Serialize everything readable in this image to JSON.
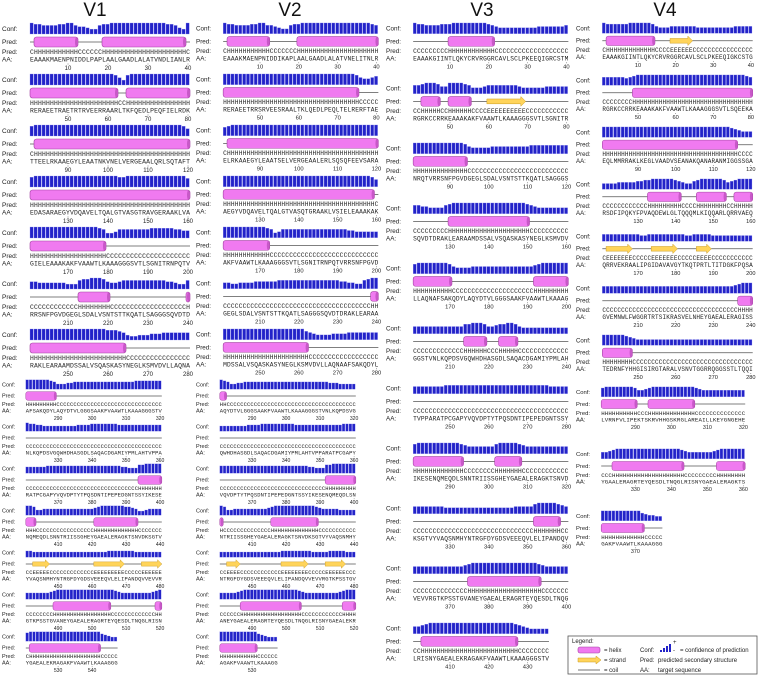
{
  "labels": {
    "conf": "Conf:",
    "pred": "Pred:",
    "aa": "AA:"
  },
  "columns": [
    {
      "title": "V1",
      "blocks": [
        {
          "conf": "9887777889976654478899999999999999887549",
          "pred": "CHHHHHHHHHHHCCCCCCHHHHHHHHHHHHHHHHHHHHHC",
          "aa": "EAAAKMAENPNIDDLPAPLAALGAADLALATVNDLIANLR",
          "ticks": [
            10,
            20,
            30,
            40
          ]
        },
        {
          "conf": "9999999999999999999998648999999999999999",
          "pred": "HHHHHHHHHHHHHHHHHHHHHHCCHHHHHHHHHHHHHHHH",
          "aa": "RERAEETRAETRTRVEERRAARLTKFQEDLPEQFIELRDK",
          "ticks": [
            50,
            60,
            70,
            80
          ]
        },
        {
          "conf": "8999999999999999999999999999999999999986",
          "pred": "CHHHHHHHHHHHHHHHHHHHHHHHHHHHHHHHHHHHHHHH",
          "aa": "TTEELRKAAEGYLEAATNKVNELVERGEAALQRLSQTAFT",
          "ticks": [
            90,
            100,
            110,
            120
          ]
        },
        {
          "conf": "8999999999999999999999889999999999999997",
          "pred": "HHHHHHHHHHHHHHHHHHHHHHHHHHHHHHHHHHHHHHHH",
          "aa": "EDASARAEGYVDQAVELTQALGTVASGTRAVGERAAKLVA",
          "ticks": [
            130,
            140,
            150,
            160
          ]
        },
        {
          "conf": "9999999999999999987445777777778888887766",
          "pred": "HHHHHHHHHHHHHHHHHHHCCCCCCCCCCCCCCCCCCCCC",
          "aa": "GIELEAAAKAKFVAAWTLKAAAGGGSVTLSGNITRNPQTV",
          "ticks": [
            170,
            180,
            190,
            200
          ]
        },
        {
          "conf": "6655555554447889998655677777777777665447",
          "pred": "CCCCCCCCCCCCHHHHHHHHCCCCCCCCCCCCCCCCCCCH",
          "aa": "RRSNFPGVDGEGLSDALVSNTSTTKQATLSAGGGSQVDTD",
          "ticks": [
            210,
            220,
            230,
            240
          ]
        },
        {
          "conf": "9999999999999999999888764334445556666666",
          "pred": "HHHHHHHHHHHHHHHHHHHHHHHHCCCCCCCCCCCCCCCC",
          "aa": "RAKLEARAAMDSSALVSQASKASYNEGLKSMVDVLLAQNA",
          "ticks": [
            250,
            260,
            270,
            280
          ]
        },
        {
          "conf": "9999999875556677777777777777777788888888",
          "pred": "HHHHHHHHHCCCCCCCCCCCCCCCCCCCCCCCCCCCCCCC",
          "aa": "AFSAKQDYLAQYDTVLGGGSAAKFVAAWTLKAAAGGGSTV",
          "ticks": [
            290,
            300,
            310,
            320
          ]
        },
        {
          "conf": "8776655555555556666777777776666666666666",
          "pred": "CCCCCCCCCCCCCCCCCCCCCCCCCCCCCCCCCCCCCCCC",
          "aa": "NLKQPDSVGQWHDHASGDLSAQACDGAMIYPMLAHTVPPA",
          "ticks": [
            330,
            340,
            350,
            360
          ]
        },
        {
          "conf": "6666667777777777777777777777665558899999",
          "pred": "CCCCCCCCCCCCCCCCCCCCCCCCCCCCCCCCCHHHHHHH",
          "aa": "RATPCGAPYVQVDPTYTPQSDNTIPEPEDGNTSSYIKESE",
          "ticks": [
            370,
            380,
            390,
            400
          ]
        },
        {
          "conf": "9985566666666666666678999999988764456666",
          "pred": "HHHCCCCCCCCCCCCCCCCCHHHHHHHHHHHHHCCCCCCC",
          "aa": "NQMEQDLSNNTRIISSGHEYGAEALERAGKTSNVDKSGTV",
          "ticks": [
            410,
            420,
            430,
            440
          ]
        },
        {
          "conf": "6655555555555555555555556666666655555555",
          "pred": "CCEEEEECCCCCCCCCCCCCEEEEEEEEECCCCCEEEEEE",
          "aa": "YVAQSNMHYNTRGFDYGDSVEEEQVLELIPANDQVVEVVR",
          "ticks": [
            450,
            460,
            470,
            480
          ]
        },
        {
          "conf": "6666666789999999999999999987666666666789",
          "pred": "CCCCCCCCHHHHHHHHHHHHHHHHHCCCCCCCCCCCCCHH",
          "aa": "GTKPSSTGVANEYGAEALERAGRTEYQESDLTNQGLRISN",
          "ticks": [
            490,
            500,
            510,
            520
          ]
        },
        {
          "conf": "899999999999999999999976544",
          "pred": "CHHHHHHHHHHHHHHHHHHHHHCCCCC",
          "aa": "YGAEALEKRAGAKFVAAWTLKAAAGGG",
          "ticks": [
            530,
            540
          ]
        }
      ]
    },
    {
      "title": "V2",
      "blocks": [
        {
          "conf": "9887777889977654478899999999999999999987",
          "pred": "CHHHHHHHHHHHCCCCCCCHHHHHHHHHHHHHHHHHHHHH",
          "aa": "EAAAKMAENPNIDDIKAPLAALGAADLALATVNELITNLR",
          "ticks": [
            10,
            20,
            30,
            40
          ]
        },
        {
          "conf": "9999999999999999999999999999999999865567",
          "pred": "HHHHHHHHHHHHHHHHHHHHHHHHHHHHHHHHHHHCCCCC",
          "aa": "RERAEETRRSRVEESRAALTKLQEDLPEQLTELRERFTAE",
          "ticks": [
            50,
            60,
            70,
            80
          ]
        },
        {
          "conf": "7899999999999999999999999999999999999999",
          "pred": "CHHHHHHHHHHHHHHHHHHHHHHHHHHHHHHHHHHHHHHH",
          "aa": "ELRKAAEGYLEAATSELVERGEAALERLSQSQFEEVSARA",
          "ticks": [
            90,
            100,
            110,
            120
          ]
        },
        {
          "conf": "9999999999999999999999999999999999999986",
          "pred": "HHHHHHHHHHHHHHHHHHHHHHHHHHHHHHHHHHHHHHHC",
          "aa": "AEGYVDQAVELTQALGTVASQTGRAAKLVSIELEAAAKAK",
          "ticks": [
            130,
            140,
            150,
            160
          ]
        },
        {
          "conf": "9999999999987457777777777777777766555555",
          "pred": "HHHHHHHHHHHHCCCCCCCCCCCCCCCCCCCCCCCCCCCC",
          "aa": "AKFVAAWTLKAAAGGGSVTLSGNITRNPQTVRRSNFPGVD",
          "ticks": [
            170,
            180,
            190,
            200
          ]
        },
        {
          "conf": "5544555566666677777777777777776655447899",
          "pred": "CCCCCCCCCCCCCCCCCCCCCCCCCCCCCCCCCCCCCCHH",
          "aa": "GEGLSDALVSNTSTTKQATLSAGGGSQVDTDRAKLEARAA",
          "ticks": [
            210,
            220,
            230,
            240
          ]
        },
        {
          "conf": "9999999999999999999997654444555566666666",
          "pred": "HHHHHHHHHHHHHHHHHHHHHHCCCCCCCCCCCCCCCCCC",
          "aa": "MDSSALVSQASKASYNEGLKSMVDVLLAQNAAFSAKQDYL",
          "ticks": [
            250,
            260,
            270,
            280
          ]
        },
        {
          "conf": "9875566777777777777777777777777766655555",
          "pred": "HHCCCCCCCCCCCCCCCCCCCCCCCCCCCCCCCCCCCCCC",
          "aa": "AQYDTVLGGGSAAKFVAAWTLKAAAGGGSTVNLKQPDSVG",
          "ticks": [
            290,
            300,
            310,
            320
          ]
        },
        {
          "conf": "5555555566667777777777666666666666667777",
          "pred": "CCCCCCCCCCCCCCCCCCCCCCCCCCCCCCCCCCCCCCCC",
          "aa": "QWHDHASGDLSAQACDGAMIYPMLAHTVPPARATPCGAPY",
          "ticks": [
            330,
            340,
            350,
            360
          ]
        },
        {
          "conf": "7777777777777777777777777766555889999999",
          "pred": "CCCCCCCCCCCCCCCCCCCCCCCCCCCCCCCHHHHHHHHH",
          "aa": "VQVDPTYTPQSDNTIPEPEDGNTSSYIKESENQMEQDLSN",
          "ticks": [
            370,
            380,
            390,
            400
          ]
        },
        {
          "conf": "9855666666666678999999999999876666655555",
          "pred": "HCCCCCCCCCCCCCCHHHHHHHHHHHHHHCCCCCCCCCCC",
          "aa": "NTRIISSGHEYGAEALERAGKTSNVDKSGTVYVAQSNMHY",
          "ticks": [
            410,
            420,
            430,
            440
          ]
        },
        {
          "conf": "5555555555555555556666666665555566666555",
          "pred": "CCEEEECCCCCCCCCCCCEEEEEEEECCCCCEEEEEECCC",
          "aa": "NTRGFDYGDSVEEEQVLELIPANDQVVEVVRGTKPSSTGV",
          "ticks": [
            450,
            460,
            470,
            480
          ]
        },
        {
          "conf": "6666678999999999999999987666666666678999",
          "pred": "CCCCCCHHHHHHHHHHHHHHHHHHCCCCCCCCCCCCHHHH",
          "aa": "ANEYGAEALERAGRTEYQESDLTNQGLRISNYGAEALEKR",
          "ticks": [
            490,
            500,
            510,
            520
          ]
        },
        {
          "conf": "99999999999765444",
          "pred": "HHHHHHHHHHHCCCCCC",
          "aa": "AGAKFVAAWTLKAAAGG",
          "ticks": [
            530
          ]
        }
      ]
    },
    {
      "title": "V3",
      "blocks": [
        {
          "conf": "9887777888999999999876555555555566666667",
          "pred": "CCCCCCCCCHHHHHHHHHHHHCCCCCCCCCCCCCCCCCCC",
          "aa": "EAAAKGIINTLQKYCRVRGGRCAVLSCLPKEEQIGRCSTM",
          "ticks": [
            10,
            20,
            30,
            40
          ]
        },
        {
          "conf": "7789998669999875556777777776555555666666",
          "pred": "CCHHHHHCCHHHHHHCCCCEEEEEEEEEECCCCCCCCCCC",
          "aa": "RGRKCCRRKEAAAKAKFVAAWTLKAAAGGGSVTLSGNITR",
          "ticks": [
            50,
            60,
            70,
            80
          ]
        },
        {
          "conf": "9999999999999865555566666666667777777777",
          "pred": "HHHHHHHHHHHHHHCCCCCCCCCCCCCCCCCCCCCCCCCC",
          "aa": "NRQTVRRSNFPGVDGEGLSDALVSNTSTTKQATLSAGGGS",
          "ticks": [
            90,
            100,
            110,
            120
          ]
        },
        {
          "conf": "7766555578999999999999999999987655555555",
          "pred": "CCCCCCCCCHHHHHHHHHHHHHHHHHHHHHCCCCCCCCCC",
          "aa": "SQVDTDRAKLEARAAMDSSALVSQASKASYNEGLKSMVDV",
          "ticks": [
            130,
            140,
            150,
            160
          ]
        },
        {
          "conf": "8999999998655556666666666666666789999999",
          "pred": "HHHHHHHHHHCCCCCCCCCCCCCCCCCCCCCHHHHHHHHH",
          "aa": "LLAQNAFSAKQDYLAQYDTVLGGGSAAKFVAAWTLKAAAG",
          "ticks": [
            170,
            180,
            190,
            200
          ]
        },
        {
          "conf": "6666666666666889998667889986555555555555",
          "pred": "CCCCCCCCCCCCCHHHHHHCCCHHHHHCCCCCCCCCCCCC",
          "aa": "GGSTVNLKQPDSVGQWHDHASGDLSAQACDGAMIYPMLAH",
          "ticks": [
            210,
            220,
            230,
            240
          ]
        },
        {
          "conf": "6666666677777777777777777777777777766666",
          "pred": "CCCCCCCCCCCCCCCCCCCCCCCCCCCCCCCCCCCCCCCC",
          "aa": "TVPPARATPCGAPYVQVDPTYTPQSDNTIPEPEDGNTSSY",
          "ticks": [
            250,
            260,
            270,
            280
          ]
        },
        {
          "conf": "8999999999998766666668999998766666666666",
          "pred": "HHHHHHHHHHHHHCCCCCCCCHHHHHHHCCCCCCCCCCCC",
          "aa": "IKESENQMEQDLSNNTRIISSGHEYGAEALERAGKTSNVD",
          "ticks": [
            290,
            300,
            310,
            320
          ]
        },
        {
          "conf": "6666666655555555555555555566666899999876",
          "pred": "CCCCCCCCCCCCCCCCCCCCCCCCCCCCCCCHHHHHHHCC",
          "aa": "KSGTVYVAQSNMHYNTRGFDYGDSVEEEQVLELIPANDQV",
          "ticks": [
            330,
            340,
            350,
            360
          ]
        },
        {
          "conf": "6666666666666789999999999999999987666666",
          "pred": "CCCCCCCCCCCCCCHHHHHHHHHHHHHHHHHHHCCCCCCC",
          "aa": "VEVVRGTKPSSTGVANEYGAEALERAGRTEYQESDLTNQG",
          "ticks": [
            370,
            380,
            390,
            400
          ]
        },
        {
          "conf": "66789999999999999999999999876544444",
          "pred": "CCHHHHHHHHHHHHHHHHHHHHHHHHHCCCCCCCC",
          "aa": "LRISNYGAEALEKRAGAKFVAAWTLKAAAGGGSTV",
          "ticks": [
            410,
            420,
            430
          ]
        }
      ]
    },
    {
      "title": "V4",
      "blocks": [
        {
          "conf": "9888888999999865556666666555555555566666",
          "pred": "CHHHHHHHHHHHHHCCCCEEEEEECCCCCCCCCCCCCCCC",
          "aa": "EAAAKGIINTLQKYCRVRGGRCAVLSCLPKEEQIGKCSTG",
          "ticks": [
            10,
            20,
            30,
            40
          ]
        },
        {
          "conf": "7777776789999999999999999999999999999987",
          "pred": "CCCCCCCCHHHHHHHHHHHHHHHHHHHHHHHHHHHHHHHH",
          "aa": "RGRKCCRRKEAAAKAKFVAAWTLKAAAGGGSVTLSQEEKA",
          "ticks": [
            50,
            60,
            70,
            80
          ]
        },
        {
          "conf": "9999999999999999999999999999999999876555",
          "pred": "HHHHHHHHHHHHHHHHHHHHHHHHHHHHHHHHHHHHCCCC",
          "aa": "EQLMMRRAKLKEGLVAADVSEANAKQANARANMIGGSSGA",
          "ticks": [
            90,
            100,
            110,
            120
          ]
        },
        {
          "conf": "5555666667788999999876557899999986789999",
          "pred": "CCCCCCCCCCCCHHHHHHHHHCCCCHHHHHHHHCCHHHHH",
          "aa": "RSDFIPQKYFPVAQDEWLGLTQQQMLKIQQARLQRRVAEQ",
          "ticks": [
            130,
            140,
            150,
            160
          ]
        },
        {
          "conf": "6666666666556666666666556666655555555555",
          "pred": "CEEEEEEECCCCCEEEEEEECCCCCEEEECCCCCCCCCCC",
          "aa": "QRRVEKRAALIPGIDAVAVGYTKQTPRTLTITDGKFPQSA",
          "ticks": [
            170,
            180,
            190,
            200
          ]
        },
        {
          "conf": "6666666666666666666666666666666666678999",
          "pred": "CCCCCCCCCCCCCCCCCCCCCCCCCCCCCCCCCCCCHHHH",
          "aa": "GVEMNWLFWGGRTRTSIKRASVELNHEYGAEALERAGISS",
          "ticks": [
            210,
            220,
            230,
            240
          ]
        },
        {
          "conf": "9999998765555555555555555555555555555555",
          "pred": "HHHHHHHHCCCCCCCCCCCCCCCCCCCCCCCCCCCCCCCC",
          "aa": "TEDRNFYHHGISIRGTARALVSNVTGGRRQGGSSTLTQQI",
          "ticks": [
            250,
            260,
            270,
            280
          ]
        },
        {
          "conf": "8999999998667899999999999987666666666666",
          "pred": "HHHHHHHHHHCCCHHHHHHHHHHHHHCCCCCCCCCCCCCC",
          "aa": "LVRNFVLIPEKTSKRVHHGSKRGLAREAILLKEYGNGEHE",
          "ticks": [
            290,
            300,
            310,
            320
          ]
        },
        {
          "conf": "6678999999999999999999876666666789999999",
          "pred": "CCCHHHHHHHHHHHHHHHHHHHHCCCCCCCCCHHHHHHHH",
          "aa": "YGAALERAGRTEYQESDLTNQGLRISNYGAEALERAGKTS",
          "ticks": [
            330,
            340,
            350,
            360
          ]
        },
        {
          "conf": "99999999999765544",
          "pred": "HHHHHHHHHHHHCCCCC",
          "aa": "GAKFVAAWTLKAAAGGG",
          "ticks": [
            370
          ]
        }
      ]
    }
  ],
  "legend": {
    "title": "Legend:",
    "helix": "= helix",
    "strand": "= strand",
    "coil": "= coil",
    "conf_label": "Conf:",
    "conf_plus": "+",
    "conf_minus": "-",
    "conf_text": "= confidence of prediction",
    "pred_label": "Pred:",
    "pred_text": "predicted secondary structure",
    "aa_label": "AA:",
    "aa_text": "target sequence"
  }
}
